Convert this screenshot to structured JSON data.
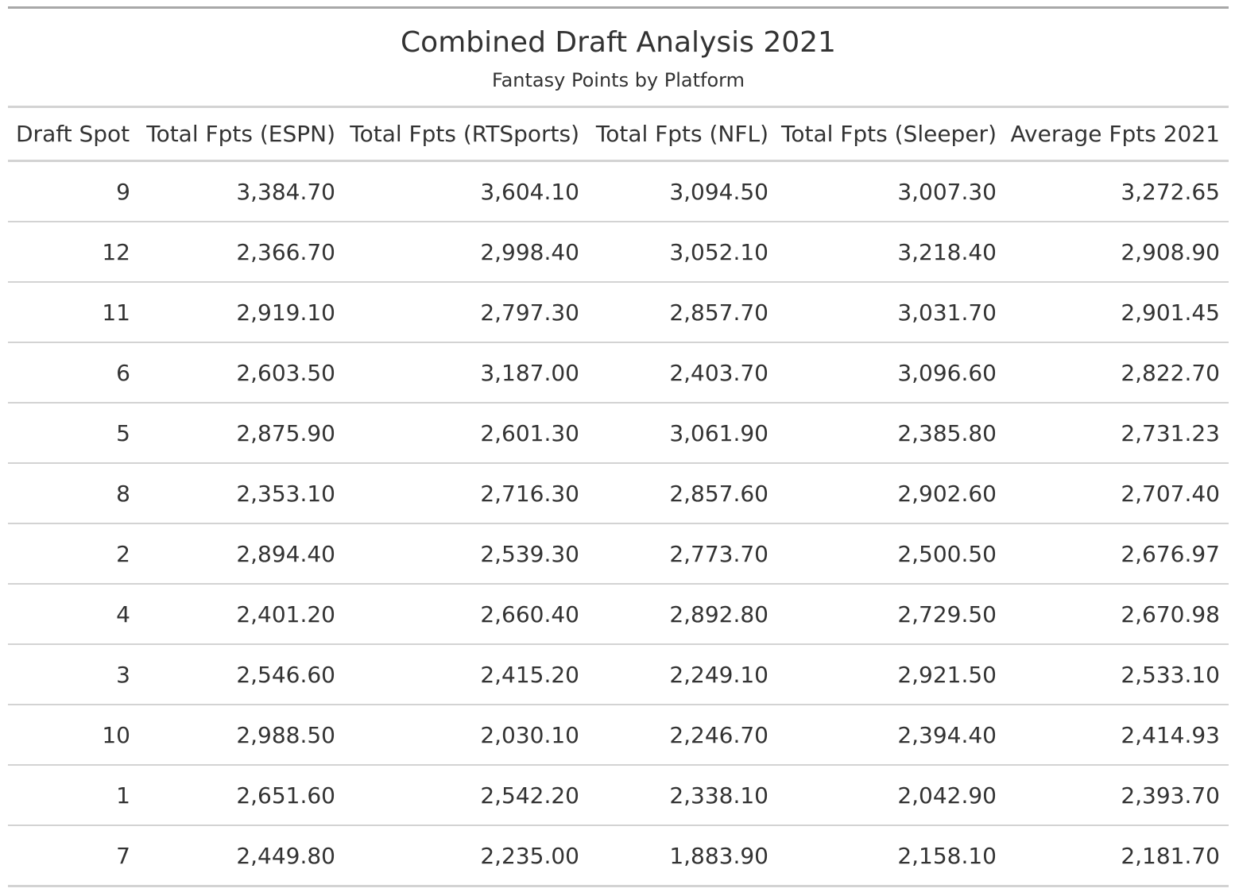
{
  "chart_data": {
    "type": "table",
    "title": "Combined Draft Analysis 2021",
    "subtitle": "Fantasy Points by Platform",
    "columns": [
      "Draft Spot",
      "Total Fpts (ESPN)",
      "Total Fpts (RTSports)",
      "Total Fpts (NFL)",
      "Total Fpts (Sleeper)",
      "Average Fpts 2021"
    ],
    "rows": [
      [
        "9",
        "3,384.70",
        "3,604.10",
        "3,094.50",
        "3,007.30",
        "3,272.65"
      ],
      [
        "12",
        "2,366.70",
        "2,998.40",
        "3,052.10",
        "3,218.40",
        "2,908.90"
      ],
      [
        "11",
        "2,919.10",
        "2,797.30",
        "2,857.70",
        "3,031.70",
        "2,901.45"
      ],
      [
        "6",
        "2,603.50",
        "3,187.00",
        "2,403.70",
        "3,096.60",
        "2,822.70"
      ],
      [
        "5",
        "2,875.90",
        "2,601.30",
        "3,061.90",
        "2,385.80",
        "2,731.23"
      ],
      [
        "8",
        "2,353.10",
        "2,716.30",
        "2,857.60",
        "2,902.60",
        "2,707.40"
      ],
      [
        "2",
        "2,894.40",
        "2,539.30",
        "2,773.70",
        "2,500.50",
        "2,676.97"
      ],
      [
        "4",
        "2,401.20",
        "2,660.40",
        "2,892.80",
        "2,729.50",
        "2,670.98"
      ],
      [
        "3",
        "2,546.60",
        "2,415.20",
        "2,249.10",
        "2,921.50",
        "2,533.10"
      ],
      [
        "10",
        "2,988.50",
        "2,030.10",
        "2,246.70",
        "2,394.40",
        "2,414.93"
      ],
      [
        "1",
        "2,651.60",
        "2,542.20",
        "2,338.10",
        "2,042.90",
        "2,393.70"
      ],
      [
        "7",
        "2,449.80",
        "2,235.00",
        "1,883.90",
        "2,158.10",
        "2,181.70"
      ]
    ]
  }
}
